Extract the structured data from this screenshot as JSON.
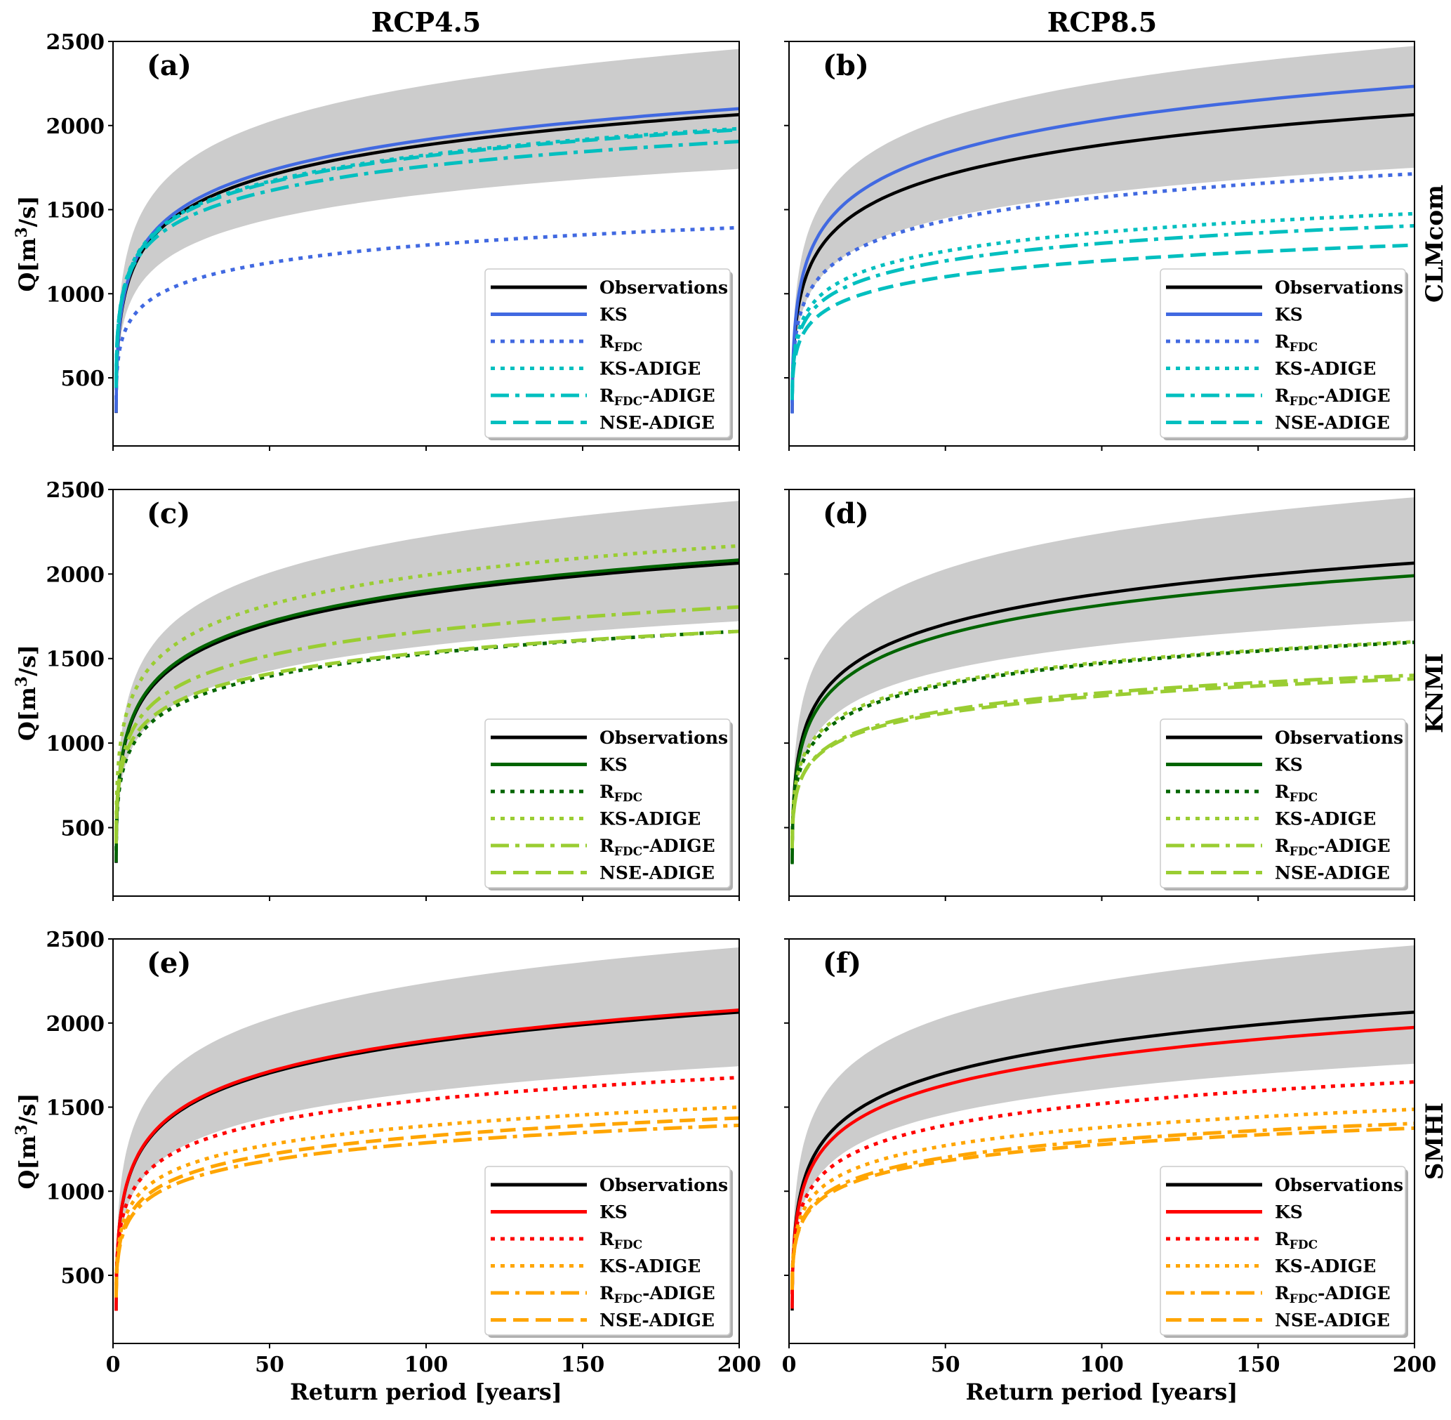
{
  "figure": {
    "column_titles": [
      "RCP4.5",
      "RCP8.5"
    ],
    "row_labels": [
      "CLMcom",
      "KNMI",
      "SMHI"
    ],
    "xlabel": "Return period [years]",
    "ylabel_text": "Q[m",
    "ylabel_sup": "3",
    "ylabel_tail": "/s]"
  },
  "chart_data": [
    {
      "panel": "(a)",
      "scenario": "RCP4.5",
      "model": "CLMcom",
      "type": "line",
      "xlim": [
        0,
        200
      ],
      "ylim": [
        95,
        2500
      ],
      "xticks": [
        0,
        50,
        100,
        150,
        200
      ],
      "yticks": [
        500,
        1000,
        1500,
        2000,
        2500
      ],
      "legend_position": "lower-right",
      "x": [
        1.01,
        2,
        5,
        10,
        20,
        50,
        100,
        150,
        200
      ],
      "band": {
        "name": "uncertainty band",
        "color": "#cccccc",
        "upper": [
          340,
          927,
          1278,
          1511,
          1734,
          2023,
          2239,
          2365,
          2455
        ],
        "lower": [
          275,
          682,
          926,
          1087,
          1242,
          1442,
          1592,
          1680,
          1742
        ]
      },
      "series": [
        {
          "name": "Observations",
          "color": "#000000",
          "style": "solid",
          "values": [
            291,
            783,
            1078,
            1273,
            1460,
            1703,
            1884,
            1990,
            2065
          ]
        },
        {
          "name": "KS",
          "color": "#4169e1",
          "style": "solid",
          "values": [
            292,
            794,
            1094,
            1293,
            1484,
            1731,
            1916,
            2023,
            2100
          ]
        },
        {
          "name": "R_FDC",
          "label_main": "R",
          "label_sub": "FDC",
          "label_tail": "",
          "color": "#4169e1",
          "style": "dotted",
          "values": [
            370,
            654,
            824,
            936,
            1044,
            1184,
            1289,
            1350,
            1393
          ]
        },
        {
          "name": "KS-ADIGE",
          "color": "#00bfbf",
          "style": "dotted",
          "values": [
            447,
            873,
            1128,
            1297,
            1459,
            1668,
            1825,
            1917,
            1982
          ]
        },
        {
          "name": "R_FDC-ADIGE",
          "label_main": "R",
          "label_sub": "FDC",
          "label_tail": "-ADIGE",
          "color": "#00bfbf",
          "style": "dashdot",
          "values": [
            472,
            870,
            1108,
            1265,
            1417,
            1612,
            1759,
            1844,
            1905
          ]
        },
        {
          "name": "NSE-ADIGE",
          "color": "#00bfbf",
          "style": "dashed",
          "values": [
            440,
            866,
            1121,
            1290,
            1452,
            1661,
            1818,
            1910,
            1975
          ]
        }
      ]
    },
    {
      "panel": "(b)",
      "scenario": "RCP8.5",
      "model": "CLMcom",
      "type": "line",
      "xlim": [
        0,
        200
      ],
      "ylim": [
        95,
        2500
      ],
      "xticks": [
        0,
        50,
        100,
        150,
        200
      ],
      "yticks": [
        500,
        1000,
        1500,
        2000,
        2500
      ],
      "legend_position": "lower-right",
      "x": [
        1.01,
        2,
        5,
        10,
        20,
        50,
        100,
        150,
        200
      ],
      "band": {
        "name": "uncertainty band",
        "color": "#cccccc",
        "upper": [
          358,
          945,
          1296,
          1529,
          1752,
          2041,
          2257,
          2383,
          2473
        ],
        "lower": [
          282,
          689,
          933,
          1094,
          1249,
          1449,
          1599,
          1687,
          1749
        ]
      },
      "series": [
        {
          "name": "Observations",
          "color": "#000000",
          "style": "solid",
          "values": [
            291,
            783,
            1078,
            1273,
            1460,
            1703,
            1884,
            1990,
            2065
          ]
        },
        {
          "name": "KS",
          "color": "#4169e1",
          "style": "solid",
          "values": [
            288,
            828,
            1151,
            1365,
            1570,
            1836,
            2035,
            2151,
            2233
          ]
        },
        {
          "name": "R_FDC",
          "label_main": "R",
          "label_sub": "FDC",
          "label_tail": "",
          "color": "#4169e1",
          "style": "dotted",
          "values": [
            348,
            727,
            954,
            1104,
            1248,
            1434,
            1574,
            1655,
            1713
          ]
        },
        {
          "name": "KS-ADIGE",
          "color": "#00bfbf",
          "style": "dotted",
          "values": [
            384,
            687,
            869,
            989,
            1104,
            1253,
            1365,
            1430,
            1476
          ]
        },
        {
          "name": "R_FDC-ADIGE",
          "label_main": "R",
          "label_sub": "FDC",
          "label_tail": "-ADIGE",
          "color": "#00bfbf",
          "style": "dashdot",
          "values": [
            381,
            665,
            835,
            947,
            1055,
            1195,
            1300,
            1361,
            1404
          ]
        },
        {
          "name": "NSE-ADIGE",
          "color": "#00bfbf",
          "style": "dashed",
          "values": [
            368,
            624,
            777,
            878,
            975,
            1101,
            1195,
            1250,
            1289
          ]
        }
      ]
    },
    {
      "panel": "(c)",
      "scenario": "RCP4.5",
      "model": "KNMI",
      "type": "line",
      "xlim": [
        0,
        200
      ],
      "ylim": [
        95,
        2500
      ],
      "xticks": [
        0,
        50,
        100,
        150,
        200
      ],
      "yticks": [
        500,
        1000,
        1500,
        2000,
        2500
      ],
      "legend_position": "lower-right",
      "x": [
        1.01,
        2,
        5,
        10,
        20,
        50,
        100,
        150,
        200
      ],
      "band": {
        "name": "uncertainty band",
        "color": "#cccccc",
        "upper": [
          352,
          930,
          1275,
          1504,
          1724,
          2008,
          2221,
          2345,
          2433
        ],
        "lower": [
          288,
          686,
          924,
          1081,
          1233,
          1428,
          1575,
          1660,
          1721
        ]
      },
      "series": [
        {
          "name": "Observations",
          "color": "#000000",
          "style": "solid",
          "values": [
            291,
            783,
            1078,
            1273,
            1460,
            1703,
            1884,
            1990,
            2065
          ]
        },
        {
          "name": "KS",
          "color": "#006400",
          "style": "solid",
          "values": [
            295,
            792,
            1088,
            1285,
            1474,
            1718,
            1901,
            2007,
            2083
          ]
        },
        {
          "name": "R_FDC",
          "label_main": "R",
          "label_sub": "FDC",
          "label_tail": "",
          "color": "#006400",
          "style": "dotted",
          "values": [
            365,
            725,
            940,
            1082,
            1219,
            1396,
            1529,
            1606,
            1661
          ]
        },
        {
          "name": "KS-ADIGE",
          "color": "#9acd32",
          "style": "dotted",
          "values": [
            461,
            935,
            1218,
            1405,
            1585,
            1818,
            1993,
            2095,
            2167
          ]
        },
        {
          "name": "R_FDC-ADIGE",
          "label_main": "R",
          "label_sub": "FDC",
          "label_tail": "-ADIGE",
          "color": "#9acd32",
          "style": "dashdot",
          "values": [
            406,
            795,
            1027,
            1181,
            1328,
            1519,
            1662,
            1746,
            1805
          ]
        },
        {
          "name": "NSE-ADIGE",
          "color": "#9acd32",
          "style": "dashed",
          "values": [
            433,
            774,
            978,
            1113,
            1242,
            1410,
            1536,
            1609,
            1661
          ]
        }
      ]
    },
    {
      "panel": "(d)",
      "scenario": "RCP8.5",
      "model": "KNMI",
      "type": "line",
      "xlim": [
        0,
        200
      ],
      "ylim": [
        95,
        2500
      ],
      "xticks": [
        0,
        50,
        100,
        150,
        200
      ],
      "yticks": [
        500,
        1000,
        1500,
        2000,
        2500
      ],
      "legend_position": "lower-right",
      "x": [
        1.01,
        2,
        5,
        10,
        20,
        50,
        100,
        150,
        200
      ],
      "band": {
        "name": "uncertainty band",
        "color": "#cccccc",
        "upper": [
          373,
          951,
          1296,
          1525,
          1745,
          2029,
          2242,
          2366,
          2454
        ],
        "lower": [
          290,
          688,
          926,
          1083,
          1235,
          1430,
          1577,
          1662,
          1723
        ]
      },
      "series": [
        {
          "name": "Observations",
          "color": "#000000",
          "style": "solid",
          "values": [
            291,
            783,
            1078,
            1273,
            1460,
            1703,
            1884,
            1990,
            2065
          ]
        },
        {
          "name": "KS",
          "color": "#006400",
          "style": "solid",
          "values": [
            284,
            758,
            1041,
            1229,
            1409,
            1642,
            1816,
            1918,
            1990
          ]
        },
        {
          "name": "R_FDC",
          "label_main": "R",
          "label_sub": "FDC",
          "label_tail": "",
          "color": "#006400",
          "style": "dotted",
          "values": [
            368,
            709,
            913,
            1048,
            1177,
            1345,
            1471,
            1544,
            1596
          ]
        },
        {
          "name": "KS-ADIGE",
          "color": "#9acd32",
          "style": "dotted",
          "values": [
            406,
            737,
            936,
            1067,
            1193,
            1356,
            1478,
            1549,
            1600
          ]
        },
        {
          "name": "R_FDC-ADIGE",
          "label_main": "R",
          "label_sub": "FDC",
          "label_tail": "-ADIGE",
          "color": "#9acd32",
          "style": "dashdot",
          "values": [
            378,
            662,
            832,
            944,
            1052,
            1192,
            1297,
            1358,
            1401
          ]
        },
        {
          "name": "NSE-ADIGE",
          "color": "#9acd32",
          "style": "dashed",
          "values": [
            391,
            665,
            830,
            938,
            1043,
            1178,
            1279,
            1338,
            1380
          ]
        }
      ]
    },
    {
      "panel": "(e)",
      "scenario": "RCP4.5",
      "model": "SMHI",
      "type": "line",
      "xlim": [
        0,
        200
      ],
      "ylim": [
        95,
        2500
      ],
      "xticks": [
        0,
        50,
        100,
        150,
        200
      ],
      "yticks": [
        500,
        1000,
        1500,
        2000,
        2500
      ],
      "legend_position": "lower-right",
      "x": [
        1.01,
        2,
        5,
        10,
        20,
        50,
        100,
        150,
        200
      ],
      "band": {
        "name": "uncertainty band",
        "color": "#cccccc",
        "upper": [
          369,
          947,
          1292,
          1521,
          1741,
          2025,
          2238,
          2362,
          2450
        ],
        "lower": [
          276,
          683,
          927,
          1088,
          1243,
          1443,
          1593,
          1681,
          1743
        ]
      },
      "series": [
        {
          "name": "Observations",
          "color": "#000000",
          "style": "solid",
          "values": [
            291,
            783,
            1078,
            1273,
            1460,
            1703,
            1884,
            1990,
            2065
          ]
        },
        {
          "name": "KS",
          "color": "#ff0000",
          "style": "solid",
          "values": [
            289,
            786,
            1082,
            1279,
            1468,
            1712,
            1895,
            2001,
            2077
          ]
        },
        {
          "name": "R_FDC",
          "label_main": "R",
          "label_sub": "FDC",
          "label_tail": "",
          "color": "#ff0000",
          "style": "dotted",
          "values": [
            380,
            740,
            955,
            1097,
            1234,
            1411,
            1544,
            1621,
            1676
          ]
        },
        {
          "name": "KS-ADIGE",
          "color": "#ffa500",
          "style": "dotted",
          "values": [
            408,
            711,
            893,
            1013,
            1128,
            1277,
            1389,
            1454,
            1500
          ]
        },
        {
          "name": "R_FDC-ADIGE",
          "label_main": "R",
          "label_sub": "FDC",
          "label_tail": "-ADIGE",
          "color": "#ffa500",
          "style": "dashdot",
          "values": [
            368,
            653,
            823,
            935,
            1043,
            1183,
            1288,
            1349,
            1392
          ]
        },
        {
          "name": "NSE-ADIGE",
          "color": "#ffa500",
          "style": "dashed",
          "values": [
            377,
            671,
            847,
            963,
            1074,
            1219,
            1327,
            1390,
            1435
          ]
        }
      ]
    },
    {
      "panel": "(f)",
      "scenario": "RCP8.5",
      "model": "SMHI",
      "type": "line",
      "xlim": [
        0,
        200
      ],
      "ylim": [
        95,
        2500
      ],
      "xticks": [
        0,
        50,
        100,
        150,
        200
      ],
      "yticks": [
        500,
        1000,
        1500,
        2000,
        2500
      ],
      "legend_position": "lower-right",
      "x": [
        1.01,
        2,
        5,
        10,
        20,
        50,
        100,
        150,
        200
      ],
      "band": {
        "name": "uncertainty band",
        "color": "#cccccc",
        "upper": [
          381,
          959,
          1304,
          1533,
          1753,
          2037,
          2250,
          2374,
          2462
        ],
        "lower": [
          291,
          698,
          942,
          1103,
          1258,
          1458,
          1608,
          1696,
          1758
        ]
      },
      "series": [
        {
          "name": "Observations",
          "color": "#000000",
          "style": "solid",
          "values": [
            291,
            783,
            1078,
            1273,
            1460,
            1703,
            1884,
            1990,
            2065
          ]
        },
        {
          "name": "KS",
          "color": "#ff0000",
          "style": "solid",
          "values": [
            302,
            766,
            1044,
            1228,
            1404,
            1632,
            1803,
            1903,
            1974
          ]
        },
        {
          "name": "R_FDC",
          "label_main": "R",
          "label_sub": "FDC",
          "label_tail": "",
          "color": "#ff0000",
          "style": "dotted",
          "values": [
            388,
            738,
            948,
            1086,
            1220,
            1392,
            1521,
            1597,
            1650
          ]
        },
        {
          "name": "KS-ADIGE",
          "color": "#ffa500",
          "style": "dotted",
          "values": [
            429,
            723,
            899,
            1015,
            1126,
            1271,
            1379,
            1442,
            1487
          ]
        },
        {
          "name": "R_FDC-ADIGE",
          "label_main": "R",
          "label_sub": "FDC",
          "label_tail": "-ADIGE",
          "color": "#ffa500",
          "style": "dashdot",
          "values": [
            414,
            688,
            853,
            961,
            1066,
            1201,
            1302,
            1361,
            1403
          ]
        },
        {
          "name": "NSE-ADIGE",
          "color": "#ffa500",
          "style": "dashed",
          "values": [
            420,
            685,
            844,
            949,
            1049,
            1180,
            1278,
            1335,
            1375
          ]
        }
      ]
    }
  ]
}
